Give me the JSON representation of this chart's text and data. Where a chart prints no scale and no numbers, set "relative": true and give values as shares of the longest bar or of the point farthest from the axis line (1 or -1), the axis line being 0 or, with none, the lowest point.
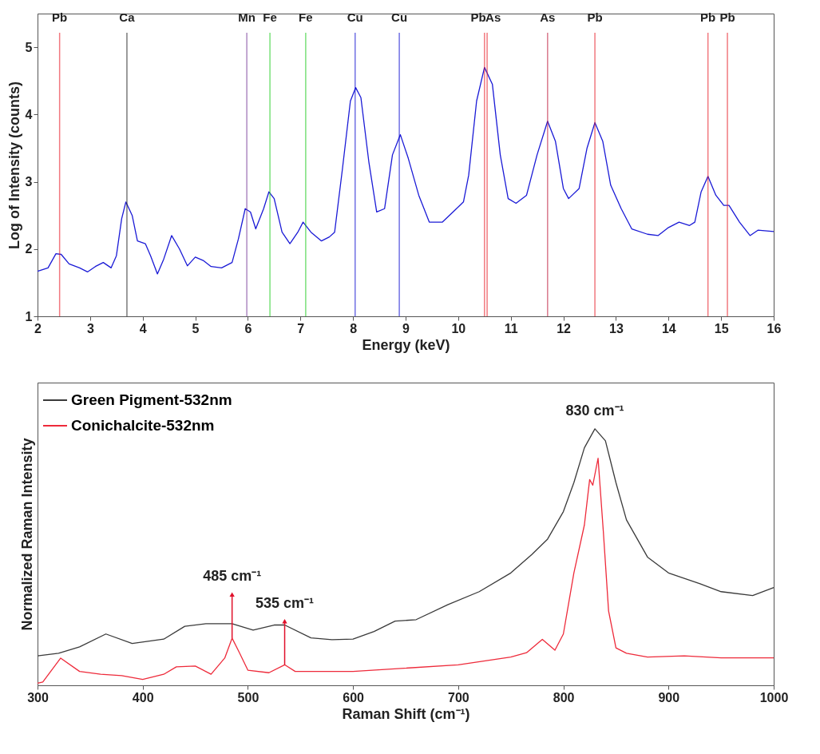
{
  "chart_data": [
    {
      "type": "line",
      "xlabel": "Energy (keV)",
      "ylabel": "Log of Intensity (counts)",
      "xlim": [
        2,
        16
      ],
      "ylim": [
        1,
        5.5
      ],
      "xticks": [
        2,
        3,
        4,
        5,
        6,
        7,
        8,
        9,
        10,
        11,
        12,
        13,
        14,
        15,
        16
      ],
      "yticks": [
        1,
        2,
        3,
        4,
        5
      ],
      "series": [
        {
          "color": "#1a1ad6",
          "x": [
            2.0,
            2.2,
            2.35,
            2.45,
            2.6,
            2.8,
            2.95,
            3.1,
            3.25,
            3.4,
            3.5,
            3.6,
            3.68,
            3.8,
            3.9,
            4.05,
            4.15,
            4.28,
            4.4,
            4.55,
            4.7,
            4.85,
            5.0,
            5.15,
            5.3,
            5.5,
            5.7,
            5.82,
            5.95,
            6.05,
            6.15,
            6.3,
            6.4,
            6.5,
            6.65,
            6.8,
            6.95,
            7.05,
            7.2,
            7.4,
            7.55,
            7.65,
            7.8,
            7.95,
            8.05,
            8.15,
            8.3,
            8.45,
            8.6,
            8.75,
            8.9,
            9.05,
            9.25,
            9.45,
            9.7,
            9.9,
            10.1,
            10.2,
            10.35,
            10.5,
            10.65,
            10.8,
            10.95,
            11.1,
            11.3,
            11.5,
            11.7,
            11.85,
            12.0,
            12.1,
            12.3,
            12.45,
            12.6,
            12.75,
            12.9,
            13.1,
            13.3,
            13.6,
            13.8,
            14.0,
            14.2,
            14.4,
            14.5,
            14.62,
            14.75,
            14.9,
            15.05,
            15.15,
            15.35,
            15.55,
            15.7,
            16.0
          ],
          "values": [
            1.67,
            1.72,
            1.93,
            1.92,
            1.78,
            1.72,
            1.66,
            1.74,
            1.8,
            1.72,
            1.9,
            2.45,
            2.7,
            2.5,
            2.12,
            2.08,
            1.9,
            1.63,
            1.85,
            2.2,
            2.0,
            1.75,
            1.88,
            1.83,
            1.74,
            1.72,
            1.8,
            2.15,
            2.6,
            2.55,
            2.3,
            2.6,
            2.85,
            2.75,
            2.25,
            2.08,
            2.25,
            2.4,
            2.25,
            2.12,
            2.18,
            2.25,
            3.2,
            4.2,
            4.4,
            4.25,
            3.3,
            2.55,
            2.6,
            3.4,
            3.7,
            3.35,
            2.8,
            2.4,
            2.4,
            2.55,
            2.7,
            3.1,
            4.2,
            4.7,
            4.45,
            3.4,
            2.75,
            2.68,
            2.8,
            3.4,
            3.9,
            3.6,
            2.9,
            2.75,
            2.9,
            3.5,
            3.88,
            3.6,
            2.95,
            2.6,
            2.3,
            2.22,
            2.2,
            2.32,
            2.4,
            2.35,
            2.4,
            2.85,
            3.08,
            2.8,
            2.65,
            2.65,
            2.4,
            2.2,
            2.28,
            2.26
          ]
        }
      ],
      "ref_lines": [
        {
          "axis": "x",
          "value": 2.42,
          "label": "Pb",
          "color": "#e8202a"
        },
        {
          "axis": "x",
          "value": 3.7,
          "label": "Ca",
          "color": "#222222"
        },
        {
          "axis": "x",
          "value": 5.98,
          "label": "Mn",
          "color": "#7a3c9a"
        },
        {
          "axis": "x",
          "value": 6.42,
          "label": "Fe",
          "color": "#22cc22"
        },
        {
          "axis": "x",
          "value": 7.1,
          "label": "Fe",
          "color": "#22cc22"
        },
        {
          "axis": "x",
          "value": 8.04,
          "label": "Cu",
          "color": "#1010d0"
        },
        {
          "axis": "x",
          "value": 8.88,
          "label": "Cu",
          "color": "#1010d0"
        },
        {
          "axis": "x",
          "value": 10.5,
          "label": "Pb",
          "color": "#e8202a"
        },
        {
          "axis": "x",
          "value": 10.55,
          "label": "As",
          "color": "#e8202a"
        },
        {
          "axis": "x",
          "value": 11.7,
          "label": "As",
          "color": "#c02040"
        },
        {
          "axis": "x",
          "value": 12.6,
          "label": "Pb",
          "color": "#e8202a"
        },
        {
          "axis": "x",
          "value": 14.75,
          "label": "Pb",
          "color": "#e8202a"
        },
        {
          "axis": "x",
          "value": 15.12,
          "label": "Pb",
          "color": "#e8202a"
        }
      ]
    },
    {
      "type": "line",
      "relative": true,
      "xlabel": "Raman Shift (cm⁻¹)",
      "ylabel": "Normalized Raman Intensity",
      "xlim": [
        300,
        1000
      ],
      "xticks": [
        300,
        400,
        500,
        600,
        700,
        800,
        900,
        1000
      ],
      "legend": "top left",
      "series": [
        {
          "name": "Green Pigment-532nm",
          "color": "#3a3a3a",
          "x": [
            300,
            320,
            340,
            365,
            390,
            420,
            440,
            460,
            485,
            505,
            525,
            535,
            560,
            580,
            600,
            620,
            640,
            660,
            690,
            720,
            750,
            770,
            785,
            800,
            810,
            820,
            830,
            840,
            850,
            860,
            880,
            900,
            930,
            950,
            980,
            1000
          ],
          "values": [
            0.115,
            0.125,
            0.15,
            0.2,
            0.163,
            0.18,
            0.23,
            0.24,
            0.24,
            0.215,
            0.235,
            0.235,
            0.185,
            0.178,
            0.18,
            0.21,
            0.25,
            0.256,
            0.314,
            0.365,
            0.438,
            0.51,
            0.57,
            0.677,
            0.79,
            0.926,
            1.0,
            0.953,
            0.79,
            0.645,
            0.5,
            0.438,
            0.396,
            0.365,
            0.35,
            0.381
          ]
        },
        {
          "name": "Conichalcite-532nm",
          "color": "#ee2a3a",
          "x": [
            300,
            305,
            322,
            340,
            360,
            380,
            400,
            420,
            432,
            450,
            465,
            478,
            485,
            492,
            500,
            520,
            535,
            545,
            600,
            700,
            750,
            765,
            780,
            792,
            800,
            810,
            820,
            825,
            828,
            833,
            838,
            843,
            850,
            860,
            880,
            915,
            950,
            1000
          ],
          "values": [
            0.008,
            0.013,
            0.106,
            0.054,
            0.043,
            0.038,
            0.023,
            0.043,
            0.072,
            0.075,
            0.043,
            0.106,
            0.184,
            0.127,
            0.059,
            0.049,
            0.08,
            0.054,
            0.054,
            0.08,
            0.11,
            0.127,
            0.179,
            0.137,
            0.2,
            0.438,
            0.625,
            0.802,
            0.78,
            0.885,
            0.6,
            0.29,
            0.146,
            0.125,
            0.11,
            0.115,
            0.107,
            0.107
          ]
        }
      ],
      "annotations": [
        {
          "text": "485 cm⁻¹",
          "x": 485,
          "y": 0.184
        },
        {
          "text": "535 cm⁻¹",
          "x": 535,
          "y": 0.08
        },
        {
          "text": "830 cm⁻¹",
          "x": 830,
          "y": 1.0
        }
      ]
    }
  ]
}
